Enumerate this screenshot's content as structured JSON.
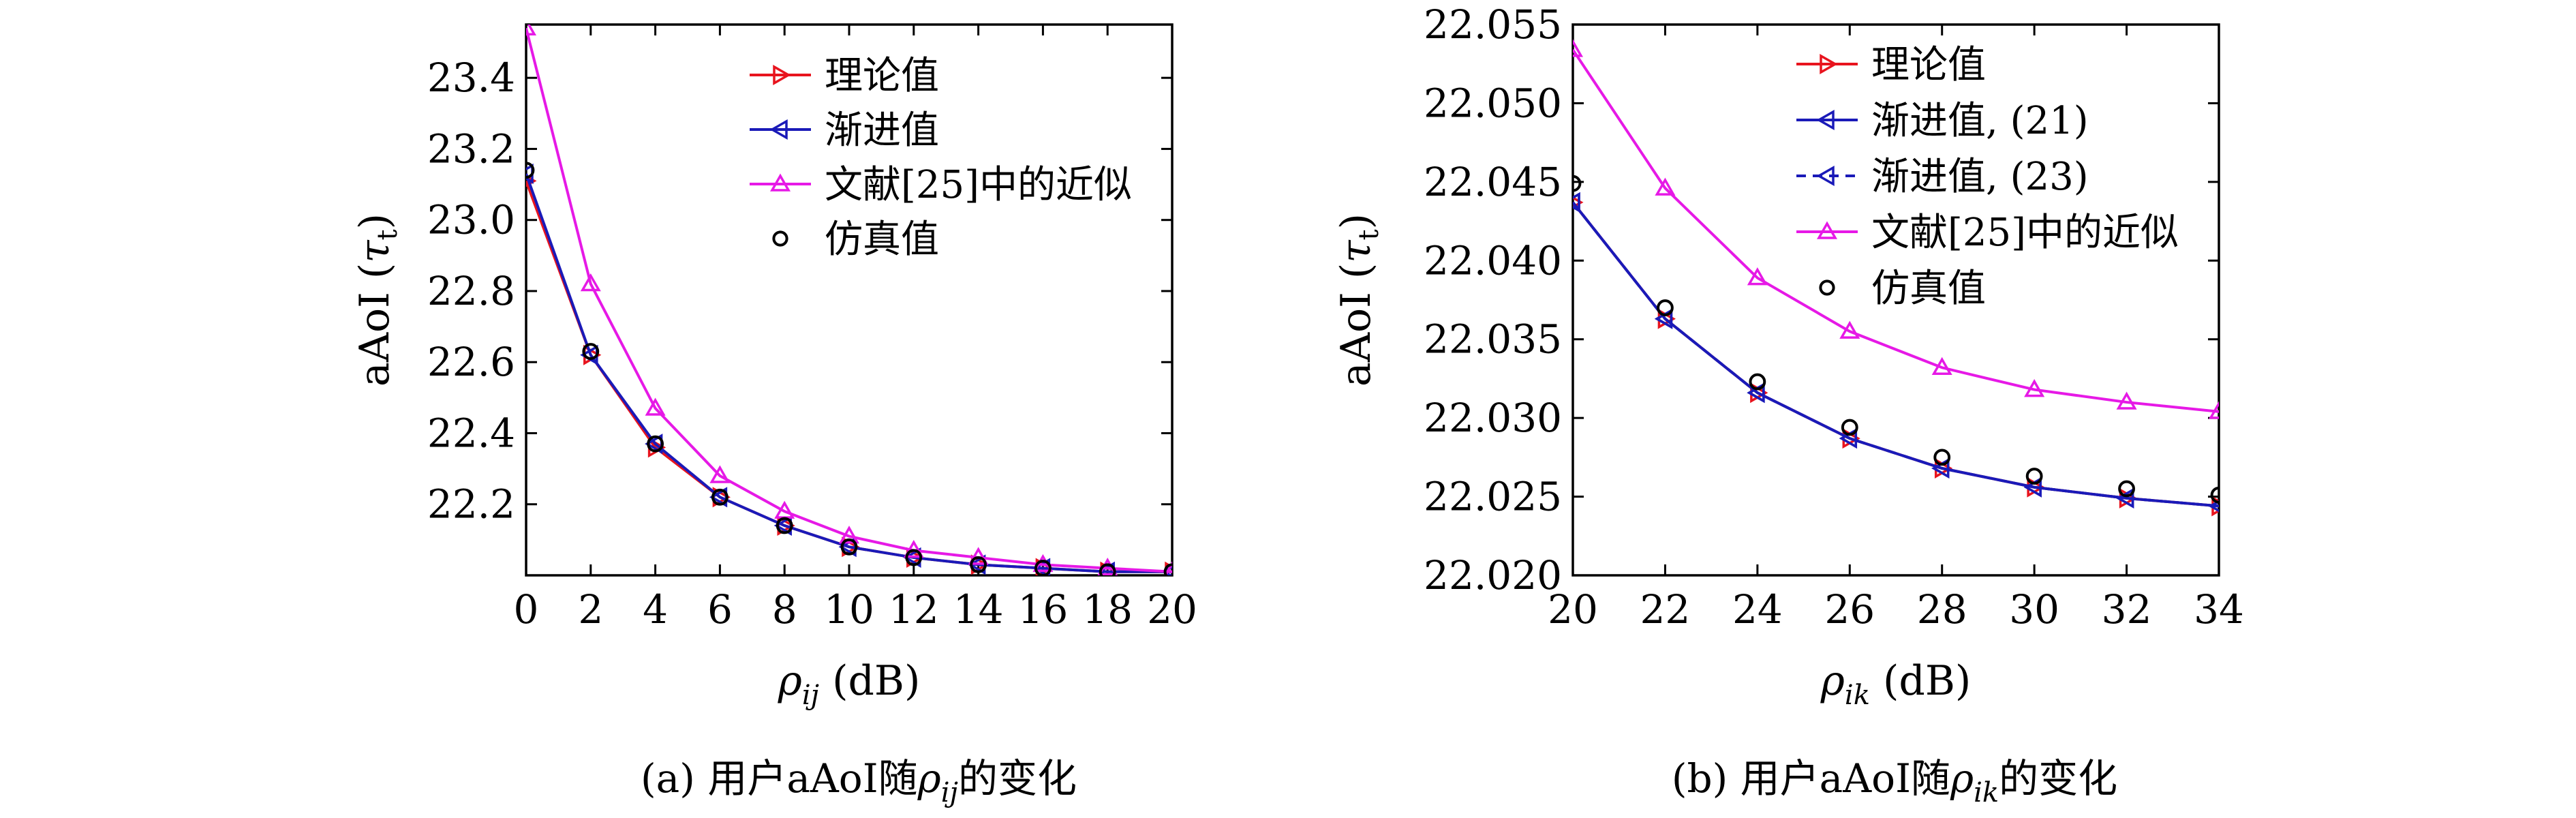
{
  "colors": {
    "theory": "#e8141e",
    "asymptotic": "#1a1ab8",
    "literature": "#e619e6",
    "simulation": "#000000",
    "axis": "#000000"
  },
  "chart_data": [
    {
      "type": "line",
      "caption_prefix": "(a) 用户aAoI随",
      "caption_symbol": "ρ",
      "caption_sub": "ij",
      "caption_suffix": "的变化",
      "xlabel_symbol": "ρ",
      "xlabel_sub": "ij",
      "xlabel_unit": " (dB)",
      "ylabel_text": "aAoI (",
      "ylabel_symbol": "τ",
      "ylabel_sub": "t",
      "ylabel_close": ")",
      "xlim": [
        0,
        20
      ],
      "ylim": [
        22.0,
        23.55
      ],
      "xticks": [
        0,
        2,
        4,
        6,
        8,
        10,
        12,
        14,
        16,
        18,
        20
      ],
      "yticks": [
        22.2,
        22.4,
        22.6,
        22.8,
        23.0,
        23.2,
        23.4
      ],
      "ytick_labels": [
        "22.2",
        "22.4",
        "22.6",
        "22.8",
        "23.0",
        "23.2",
        "23.4"
      ],
      "legend_position": "top-right",
      "x": [
        0,
        2,
        4,
        6,
        8,
        10,
        12,
        14,
        16,
        18,
        20
      ],
      "series": [
        {
          "name": "理论值",
          "color_key": "theory",
          "marker": "triangle-right",
          "values": [
            23.11,
            22.62,
            22.36,
            22.22,
            22.14,
            22.08,
            22.05,
            22.03,
            22.02,
            22.01,
            22.01
          ]
        },
        {
          "name": "渐进值",
          "color_key": "asymptotic",
          "marker": "triangle-left",
          "values": [
            23.13,
            22.62,
            22.37,
            22.22,
            22.14,
            22.08,
            22.05,
            22.03,
            22.02,
            22.01,
            22.01
          ]
        },
        {
          "name": "文献[25]中的近似",
          "color_key": "literature",
          "marker": "triangle-up",
          "values": [
            23.54,
            22.82,
            22.47,
            22.28,
            22.18,
            22.11,
            22.07,
            22.05,
            22.03,
            22.02,
            22.01
          ]
        },
        {
          "name": "仿真值",
          "color_key": "simulation",
          "marker": "circle",
          "values": [
            23.14,
            22.63,
            22.37,
            22.22,
            22.14,
            22.08,
            22.05,
            22.03,
            22.02,
            22.01,
            22.01
          ]
        }
      ]
    },
    {
      "type": "line",
      "caption_prefix": "(b) 用户aAoI随",
      "caption_symbol": "ρ",
      "caption_sub": "ik",
      "caption_suffix": "的变化",
      "xlabel_symbol": "ρ",
      "xlabel_sub": "ik",
      "xlabel_unit": " (dB)",
      "ylabel_text": "aAoI (",
      "ylabel_symbol": "τ",
      "ylabel_sub": "t",
      "ylabel_close": ")",
      "xlim": [
        20,
        34
      ],
      "ylim": [
        22.02,
        22.055
      ],
      "xticks": [
        20,
        22,
        24,
        26,
        28,
        30,
        32,
        34
      ],
      "yticks": [
        22.02,
        22.025,
        22.03,
        22.035,
        22.04,
        22.045,
        22.05,
        22.055
      ],
      "ytick_labels": [
        "22.020",
        "22.025",
        "22.030",
        "22.035",
        "22.040",
        "22.045",
        "22.050",
        "22.055"
      ],
      "legend_position": "top-right",
      "x": [
        20,
        22,
        24,
        26,
        28,
        30,
        32,
        34
      ],
      "series": [
        {
          "name": "理论值",
          "color_key": "theory",
          "marker": "triangle-right",
          "values": [
            22.0437,
            22.0363,
            22.0316,
            22.0287,
            22.0268,
            22.0256,
            22.0249,
            22.0244
          ]
        },
        {
          "name": "渐进值, (21)",
          "color_key": "asymptotic",
          "marker": "triangle-left",
          "values": [
            22.0437,
            22.0363,
            22.0316,
            22.0287,
            22.0268,
            22.0256,
            22.0249,
            22.0244
          ]
        },
        {
          "name": "渐进值, (23)",
          "color_key": "asymptotic",
          "marker": "triangle-left",
          "dashed": true,
          "values": [
            22.0437,
            22.0363,
            22.0316,
            22.0287,
            22.0268,
            22.0256,
            22.0249,
            22.0244
          ]
        },
        {
          "name": "文献[25]中的近似",
          "color_key": "literature",
          "marker": "triangle-up",
          "values": [
            22.0534,
            22.0446,
            22.0389,
            22.0355,
            22.0332,
            22.0318,
            22.031,
            22.0304
          ]
        },
        {
          "name": "仿真值",
          "color_key": "simulation",
          "marker": "circle",
          "values": [
            22.0449,
            22.037,
            22.0323,
            22.0294,
            22.0275,
            22.0263,
            22.0255,
            22.0251
          ]
        }
      ]
    }
  ]
}
